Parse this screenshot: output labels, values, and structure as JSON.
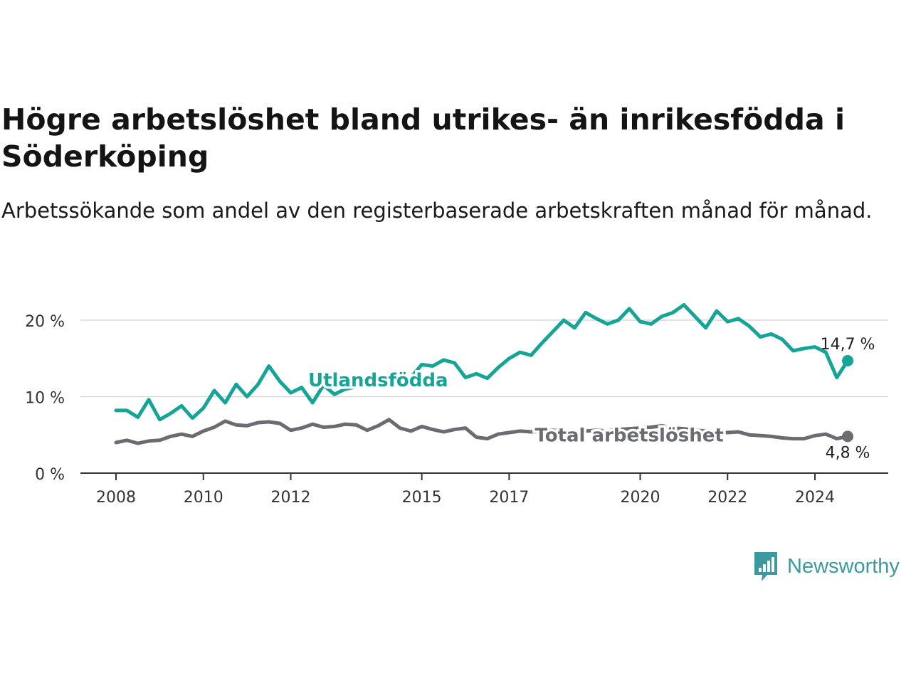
{
  "title": "Högre arbetslöshet bland utrikes- än inrikesfödda i Söderköping",
  "subtitle": "Arbetssökande som andel av den registerbaserade arbetskraften månad för månad.",
  "brand": {
    "name": "Newsworthy",
    "color": "#3a9aa0"
  },
  "chart_data": {
    "type": "line",
    "xlim": [
      2008,
      2025
    ],
    "ylim": [
      0,
      22
    ],
    "grid": true,
    "x_ticks": [
      2008,
      2010,
      2012,
      2015,
      2017,
      2020,
      2022,
      2024
    ],
    "x_tick_labels": [
      "2008",
      "2010",
      "2012",
      "2015",
      "2017",
      "2020",
      "2022",
      "2024"
    ],
    "y_ticks": [
      0,
      10,
      20
    ],
    "y_tick_labels": [
      "0 %",
      "10 %",
      "20 %"
    ],
    "series": [
      {
        "name": "Utlandsfödda",
        "color": "#14a596",
        "end_label": "14,7 %",
        "points": [
          [
            2008.0,
            8.2
          ],
          [
            2008.25,
            8.2
          ],
          [
            2008.5,
            7.3
          ],
          [
            2008.75,
            9.6
          ],
          [
            2009.0,
            7.0
          ],
          [
            2009.25,
            7.8
          ],
          [
            2009.5,
            8.8
          ],
          [
            2009.75,
            7.2
          ],
          [
            2010.0,
            8.5
          ],
          [
            2010.25,
            10.8
          ],
          [
            2010.5,
            9.2
          ],
          [
            2010.75,
            11.6
          ],
          [
            2011.0,
            10.0
          ],
          [
            2011.25,
            11.6
          ],
          [
            2011.5,
            14.0
          ],
          [
            2011.75,
            12.0
          ],
          [
            2012.0,
            10.5
          ],
          [
            2012.25,
            11.2
          ],
          [
            2012.5,
            9.2
          ],
          [
            2012.75,
            11.5
          ],
          [
            2013.0,
            10.3
          ],
          [
            2013.25,
            11.0
          ],
          [
            2013.5,
            11.3
          ],
          [
            2013.75,
            11.4
          ],
          [
            2014.0,
            11.6
          ],
          [
            2014.25,
            12.0
          ],
          [
            2014.5,
            11.8
          ],
          [
            2014.75,
            12.5
          ],
          [
            2015.0,
            14.2
          ],
          [
            2015.25,
            14.0
          ],
          [
            2015.5,
            14.8
          ],
          [
            2015.75,
            14.4
          ],
          [
            2016.0,
            12.5
          ],
          [
            2016.25,
            13.0
          ],
          [
            2016.5,
            12.4
          ],
          [
            2016.75,
            13.8
          ],
          [
            2017.0,
            15.0
          ],
          [
            2017.25,
            15.8
          ],
          [
            2017.5,
            15.4
          ],
          [
            2017.75,
            17.0
          ],
          [
            2018.0,
            18.5
          ],
          [
            2018.25,
            20.0
          ],
          [
            2018.5,
            19.0
          ],
          [
            2018.75,
            21.0
          ],
          [
            2019.0,
            20.2
          ],
          [
            2019.25,
            19.5
          ],
          [
            2019.5,
            20.0
          ],
          [
            2019.75,
            21.5
          ],
          [
            2020.0,
            19.8
          ],
          [
            2020.25,
            19.5
          ],
          [
            2020.5,
            20.5
          ],
          [
            2020.75,
            21.0
          ],
          [
            2021.0,
            22.0
          ],
          [
            2021.25,
            20.5
          ],
          [
            2021.5,
            19.0
          ],
          [
            2021.75,
            21.2
          ],
          [
            2022.0,
            19.8
          ],
          [
            2022.25,
            20.2
          ],
          [
            2022.5,
            19.2
          ],
          [
            2022.75,
            17.8
          ],
          [
            2023.0,
            18.2
          ],
          [
            2023.25,
            17.5
          ],
          [
            2023.5,
            16.0
          ],
          [
            2023.75,
            16.3
          ],
          [
            2024.0,
            16.5
          ],
          [
            2024.25,
            15.8
          ],
          [
            2024.5,
            12.5
          ],
          [
            2024.75,
            14.7
          ]
        ]
      },
      {
        "name": "Total arbetslöshet",
        "color": "#6b6b72",
        "end_label": "4,8 %",
        "points": [
          [
            2008.0,
            4.0
          ],
          [
            2008.25,
            4.3
          ],
          [
            2008.5,
            3.9
          ],
          [
            2008.75,
            4.2
          ],
          [
            2009.0,
            4.3
          ],
          [
            2009.25,
            4.8
          ],
          [
            2009.5,
            5.1
          ],
          [
            2009.75,
            4.8
          ],
          [
            2010.0,
            5.5
          ],
          [
            2010.25,
            6.0
          ],
          [
            2010.5,
            6.8
          ],
          [
            2010.75,
            6.3
          ],
          [
            2011.0,
            6.2
          ],
          [
            2011.25,
            6.6
          ],
          [
            2011.5,
            6.7
          ],
          [
            2011.75,
            6.5
          ],
          [
            2012.0,
            5.6
          ],
          [
            2012.25,
            5.9
          ],
          [
            2012.5,
            6.4
          ],
          [
            2012.75,
            6.0
          ],
          [
            2013.0,
            6.1
          ],
          [
            2013.25,
            6.4
          ],
          [
            2013.5,
            6.3
          ],
          [
            2013.75,
            5.6
          ],
          [
            2014.0,
            6.2
          ],
          [
            2014.25,
            7.0
          ],
          [
            2014.5,
            5.9
          ],
          [
            2014.75,
            5.5
          ],
          [
            2015.0,
            6.1
          ],
          [
            2015.25,
            5.7
          ],
          [
            2015.5,
            5.4
          ],
          [
            2015.75,
            5.7
          ],
          [
            2016.0,
            5.9
          ],
          [
            2016.25,
            4.7
          ],
          [
            2016.5,
            4.5
          ],
          [
            2016.75,
            5.1
          ],
          [
            2017.0,
            5.3
          ],
          [
            2017.25,
            5.5
          ],
          [
            2017.5,
            5.4
          ],
          [
            2017.75,
            5.5
          ],
          [
            2018.0,
            5.6
          ],
          [
            2018.25,
            5.5
          ],
          [
            2018.5,
            5.3
          ],
          [
            2018.75,
            5.5
          ],
          [
            2019.0,
            5.6
          ],
          [
            2019.25,
            5.5
          ],
          [
            2019.5,
            5.7
          ],
          [
            2019.75,
            5.8
          ],
          [
            2020.0,
            5.9
          ],
          [
            2020.25,
            6.0
          ],
          [
            2020.5,
            6.2
          ],
          [
            2020.75,
            5.9
          ],
          [
            2021.0,
            5.8
          ],
          [
            2021.25,
            5.6
          ],
          [
            2021.5,
            5.5
          ],
          [
            2021.75,
            5.4
          ],
          [
            2022.0,
            5.3
          ],
          [
            2022.25,
            5.4
          ],
          [
            2022.5,
            5.0
          ],
          [
            2022.75,
            4.9
          ],
          [
            2023.0,
            4.8
          ],
          [
            2023.25,
            4.6
          ],
          [
            2023.5,
            4.5
          ],
          [
            2023.75,
            4.5
          ],
          [
            2024.0,
            4.9
          ],
          [
            2024.25,
            5.1
          ],
          [
            2024.5,
            4.5
          ],
          [
            2024.75,
            4.8
          ]
        ]
      }
    ],
    "annotations": [
      {
        "text": "Utlandsfödda",
        "series": "Utlandsfödda",
        "x": 2014.0,
        "y": 12.2
      },
      {
        "text": "Total arbetslöshet",
        "series": "Total arbetslöshet",
        "x": 2019.75,
        "y": 5.0
      }
    ]
  }
}
